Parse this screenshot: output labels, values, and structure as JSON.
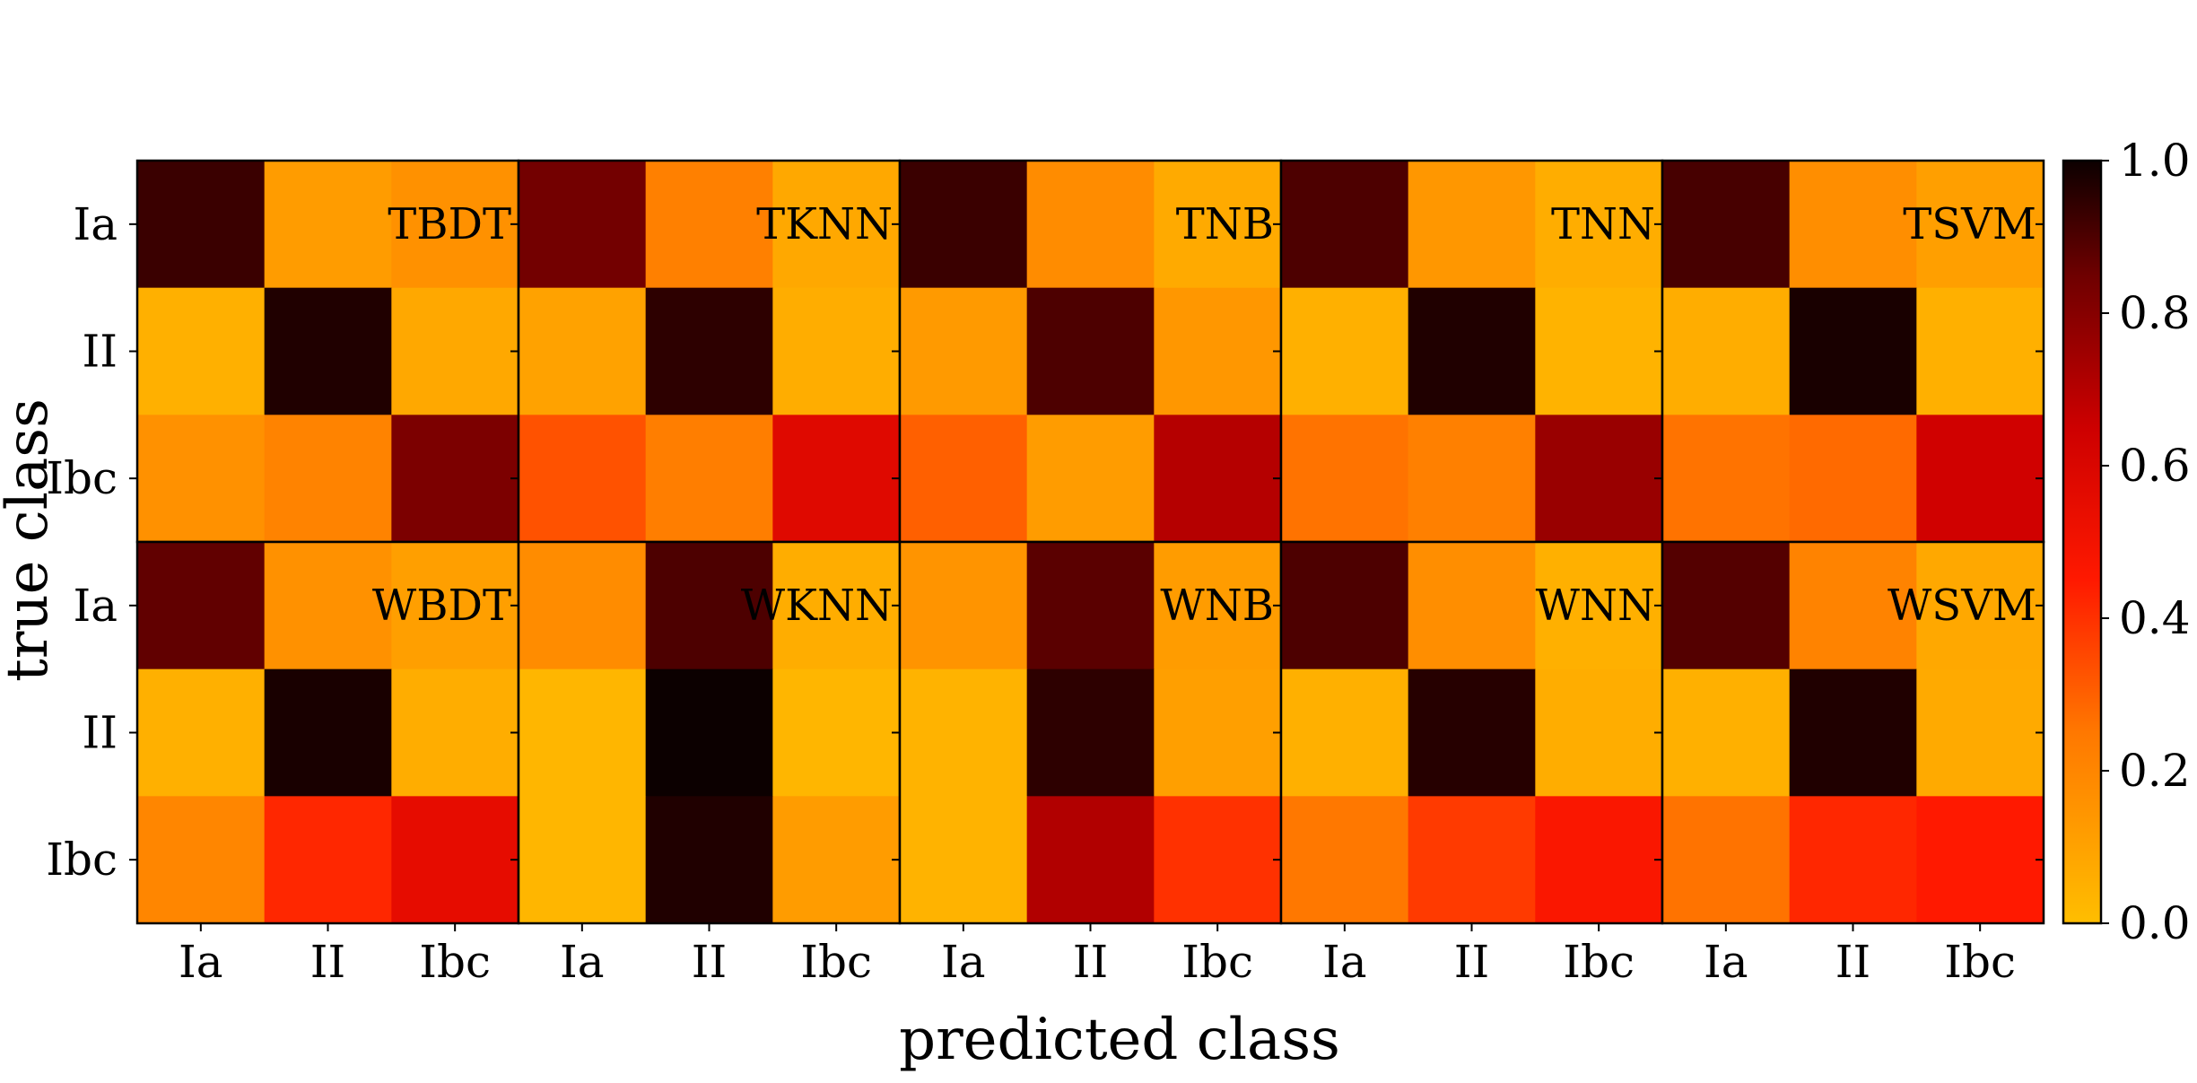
{
  "chart_data": {
    "type": "heatmap",
    "xlabel": "predicted class",
    "ylabel": "true class",
    "classes": [
      "Ia",
      "II",
      "Ibc"
    ],
    "colormap": "hot_r",
    "colorbar": {
      "range": [
        0,
        1
      ],
      "ticks": [
        "0.0",
        "0.2",
        "0.4",
        "0.6",
        "0.8",
        "1.0"
      ]
    },
    "panels": [
      {
        "name": "TBDT",
        "matrix": [
          [
            0.93,
            0.12,
            0.16
          ],
          [
            0.05,
            0.97,
            0.08
          ],
          [
            0.16,
            0.21,
            0.82
          ]
        ]
      },
      {
        "name": "TKNN",
        "matrix": [
          [
            0.84,
            0.22,
            0.08
          ],
          [
            0.1,
            0.95,
            0.06
          ],
          [
            0.33,
            0.23,
            0.58
          ]
        ]
      },
      {
        "name": "TNB",
        "matrix": [
          [
            0.93,
            0.18,
            0.07
          ],
          [
            0.13,
            0.9,
            0.14
          ],
          [
            0.3,
            0.12,
            0.7
          ]
        ]
      },
      {
        "name": "TNN",
        "matrix": [
          [
            0.9,
            0.14,
            0.06
          ],
          [
            0.05,
            0.97,
            0.04
          ],
          [
            0.26,
            0.22,
            0.76
          ]
        ]
      },
      {
        "name": "TSVM",
        "matrix": [
          [
            0.91,
            0.17,
            0.11
          ],
          [
            0.06,
            0.98,
            0.05
          ],
          [
            0.26,
            0.28,
            0.64
          ]
        ]
      },
      {
        "name": "WBDT",
        "matrix": [
          [
            0.87,
            0.16,
            0.11
          ],
          [
            0.05,
            0.98,
            0.06
          ],
          [
            0.2,
            0.42,
            0.55
          ]
        ]
      },
      {
        "name": "WKNN",
        "matrix": [
          [
            0.18,
            0.9,
            0.06
          ],
          [
            0.03,
            1.0,
            0.03
          ],
          [
            0.03,
            0.97,
            0.12
          ]
        ]
      },
      {
        "name": "WNB",
        "matrix": [
          [
            0.15,
            0.88,
            0.12
          ],
          [
            0.04,
            0.95,
            0.11
          ],
          [
            0.04,
            0.71,
            0.4
          ]
        ]
      },
      {
        "name": "WNN",
        "matrix": [
          [
            0.9,
            0.17,
            0.05
          ],
          [
            0.05,
            0.96,
            0.06
          ],
          [
            0.25,
            0.38,
            0.47
          ]
        ]
      },
      {
        "name": "WSVM",
        "matrix": [
          [
            0.89,
            0.21,
            0.08
          ],
          [
            0.05,
            0.97,
            0.07
          ],
          [
            0.26,
            0.42,
            0.45
          ]
        ]
      }
    ]
  }
}
